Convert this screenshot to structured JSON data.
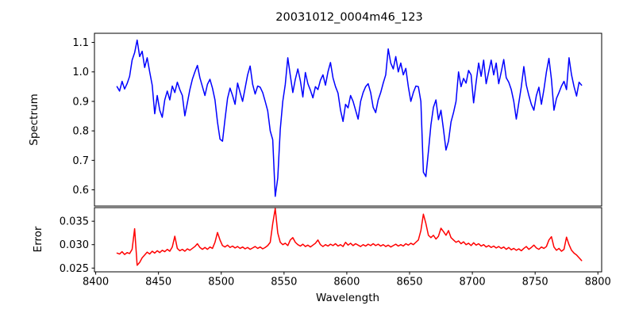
{
  "figure": {
    "title": "20031012_0004m46_123",
    "background": "#ffffff",
    "text_color": "#000000"
  },
  "chart_data": [
    {
      "type": "line",
      "name": "spectrum-panel",
      "title": "20031012_0004m46_123",
      "ylabel": "Spectrum",
      "xlabel": "",
      "line_color": "#0000ff",
      "grid": false,
      "legend": "none",
      "xlim": [
        8399,
        8803
      ],
      "ylim": [
        0.545,
        1.131
      ],
      "ytick_values": [
        0.6,
        0.7,
        0.8,
        0.9,
        1.0,
        1.1
      ],
      "ytick_labels": [
        "0.6",
        "0.7",
        "0.8",
        "0.9",
        "1.0",
        "1.1"
      ],
      "x_start": 8417,
      "x_step": 2,
      "values": [
        0.95,
        0.935,
        0.968,
        0.942,
        0.96,
        0.985,
        1.04,
        1.065,
        1.108,
        1.052,
        1.07,
        1.015,
        1.048,
        1.0,
        0.955,
        0.858,
        0.92,
        0.87,
        0.846,
        0.905,
        0.935,
        0.905,
        0.952,
        0.93,
        0.965,
        0.94,
        0.92,
        0.851,
        0.895,
        0.94,
        0.975,
        1.0,
        1.022,
        0.98,
        0.95,
        0.92,
        0.958,
        0.975,
        0.945,
        0.905,
        0.83,
        0.772,
        0.765,
        0.84,
        0.91,
        0.945,
        0.92,
        0.89,
        0.962,
        0.93,
        0.9,
        0.945,
        0.99,
        1.02,
        0.958,
        0.925,
        0.952,
        0.948,
        0.93,
        0.9,
        0.868,
        0.8,
        0.77,
        0.578,
        0.64,
        0.805,
        0.9,
        0.958,
        1.048,
        0.988,
        0.93,
        0.975,
        1.01,
        0.97,
        0.915,
        0.998,
        0.96,
        0.938,
        0.912,
        0.95,
        0.94,
        0.972,
        0.99,
        0.955,
        1.0,
        1.032,
        0.98,
        0.95,
        0.928,
        0.87,
        0.832,
        0.89,
        0.878,
        0.92,
        0.9,
        0.87,
        0.84,
        0.9,
        0.93,
        0.95,
        0.96,
        0.93,
        0.88,
        0.862,
        0.905,
        0.93,
        0.962,
        0.99,
        1.078,
        1.03,
        1.01,
        1.052,
        1.0,
        1.03,
        0.99,
        1.012,
        0.95,
        0.9,
        0.93,
        0.952,
        0.95,
        0.9,
        0.66,
        0.645,
        0.73,
        0.82,
        0.88,
        0.905,
        0.838,
        0.87,
        0.805,
        0.735,
        0.765,
        0.83,
        0.862,
        0.9,
        1.0,
        0.95,
        0.978,
        0.962,
        1.005,
        0.99,
        0.895,
        0.965,
        1.03,
        0.985,
        1.04,
        0.96,
        1.0,
        1.04,
        0.99,
        1.03,
        0.96,
        1.0,
        1.042,
        0.98,
        0.965,
        0.94,
        0.9,
        0.84,
        0.895,
        0.95,
        1.018,
        0.955,
        0.92,
        0.89,
        0.87,
        0.92,
        0.948,
        0.89,
        0.94,
        1.0,
        1.046,
        0.975,
        0.87,
        0.91,
        0.93,
        0.952,
        0.968,
        0.94,
        1.048,
        0.99,
        0.95,
        0.918,
        0.965,
        0.955
      ]
    },
    {
      "type": "line",
      "name": "error-panel",
      "ylabel": "Error",
      "xlabel": "Wavelength",
      "line_color": "#ff0000",
      "grid": false,
      "legend": "none",
      "xlim": [
        8399,
        8803
      ],
      "ylim": [
        0.0242,
        0.0379
      ],
      "ytick_values": [
        0.025,
        0.03,
        0.035
      ],
      "ytick_labels": [
        "0.025",
        "0.030",
        "0.035"
      ],
      "xtick_values": [
        8400,
        8450,
        8500,
        8550,
        8600,
        8650,
        8700,
        8750,
        8800
      ],
      "xtick_labels": [
        "8400",
        "8450",
        "8500",
        "8550",
        "8600",
        "8650",
        "8700",
        "8750",
        "8800"
      ],
      "x_start": 8417,
      "x_step": 2,
      "values": [
        0.0282,
        0.028,
        0.0285,
        0.0279,
        0.0283,
        0.0281,
        0.029,
        0.0334,
        0.0256,
        0.0262,
        0.0272,
        0.0278,
        0.0284,
        0.028,
        0.0286,
        0.0282,
        0.0287,
        0.0283,
        0.0288,
        0.0285,
        0.029,
        0.0286,
        0.0295,
        0.0318,
        0.0292,
        0.0287,
        0.029,
        0.0286,
        0.0291,
        0.0288,
        0.0292,
        0.0296,
        0.0302,
        0.0294,
        0.029,
        0.0294,
        0.029,
        0.0295,
        0.0292,
        0.0305,
        0.0326,
        0.031,
        0.0298,
        0.0295,
        0.0299,
        0.0294,
        0.0297,
        0.0293,
        0.0296,
        0.0292,
        0.0295,
        0.0291,
        0.0294,
        0.029,
        0.0293,
        0.0296,
        0.0292,
        0.0295,
        0.0291,
        0.0294,
        0.0298,
        0.0305,
        0.0345,
        0.0377,
        0.0325,
        0.0305,
        0.03,
        0.0303,
        0.0298,
        0.031,
        0.0315,
        0.0305,
        0.03,
        0.0297,
        0.0301,
        0.0296,
        0.0299,
        0.0295,
        0.0299,
        0.0303,
        0.031,
        0.03,
        0.0296,
        0.03,
        0.0297,
        0.0301,
        0.0298,
        0.0302,
        0.0297,
        0.03,
        0.0296,
        0.0305,
        0.0299,
        0.0303,
        0.0298,
        0.0302,
        0.0299,
        0.0296,
        0.03,
        0.0297,
        0.0301,
        0.0298,
        0.0302,
        0.0298,
        0.0301,
        0.0297,
        0.03,
        0.0296,
        0.0299,
        0.0295,
        0.0298,
        0.0301,
        0.0297,
        0.03,
        0.0297,
        0.0302,
        0.0299,
        0.0303,
        0.03,
        0.0305,
        0.031,
        0.033,
        0.0365,
        0.0345,
        0.032,
        0.0315,
        0.032,
        0.0312,
        0.0318,
        0.0335,
        0.0328,
        0.032,
        0.033,
        0.0315,
        0.031,
        0.0305,
        0.0308,
        0.0302,
        0.0306,
        0.03,
        0.0303,
        0.0298,
        0.0304,
        0.0299,
        0.0302,
        0.0297,
        0.03,
        0.0295,
        0.0298,
        0.0294,
        0.0297,
        0.0293,
        0.0296,
        0.0292,
        0.0295,
        0.029,
        0.0294,
        0.0289,
        0.0292,
        0.0288,
        0.0291,
        0.0287,
        0.0292,
        0.0296,
        0.029,
        0.0294,
        0.0299,
        0.0293,
        0.029,
        0.0295,
        0.0292,
        0.0296,
        0.031,
        0.0317,
        0.0295,
        0.0288,
        0.0292,
        0.0286,
        0.029,
        0.0316,
        0.03,
        0.0288,
        0.0282,
        0.0278,
        0.0272,
        0.0266
      ]
    }
  ]
}
